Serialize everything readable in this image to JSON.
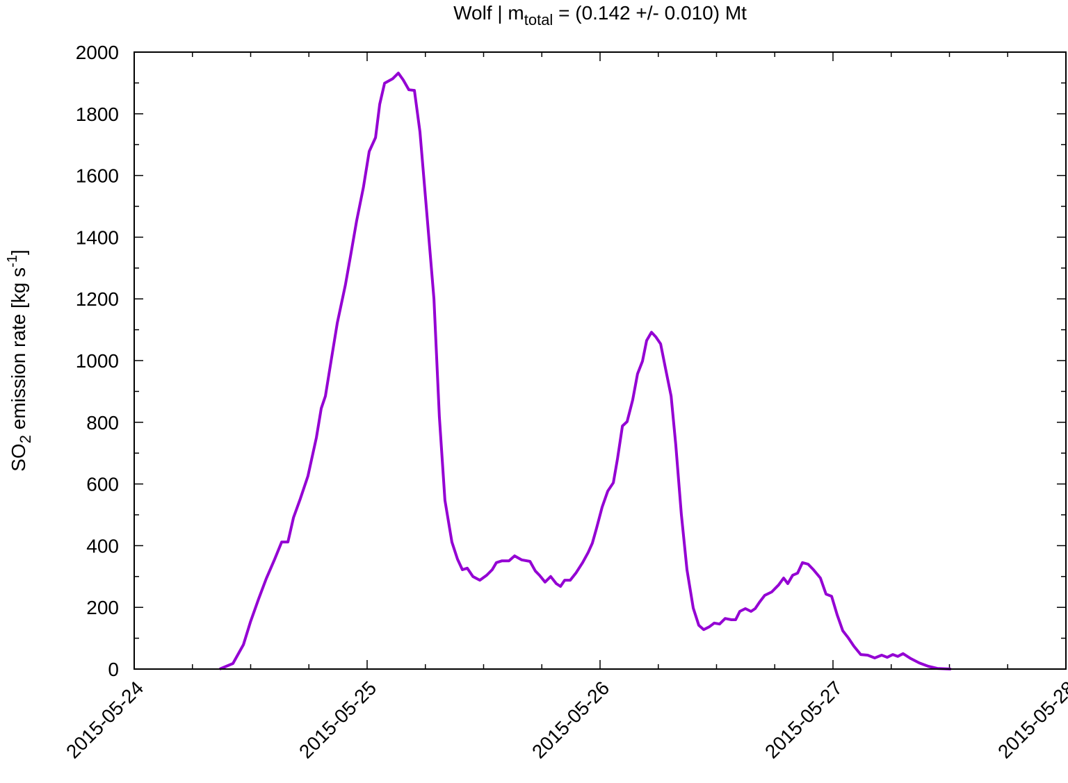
{
  "chart_data": {
    "type": "line",
    "title": {
      "prefix": "Wolf | m",
      "subscript": "total",
      "suffix": " = (0.142 +/- 0.010) Mt"
    },
    "y_label": {
      "prefix": "SO",
      "subscript": "2",
      "middle": " emission rate [kg s",
      "superscript": "-1",
      "suffix": "]"
    },
    "color": "#9400d3",
    "x": [
      0.367,
      0.424,
      0.469,
      0.499,
      0.534,
      0.567,
      0.603,
      0.633,
      0.66,
      0.684,
      0.713,
      0.746,
      0.782,
      0.803,
      0.821,
      0.845,
      0.872,
      0.907,
      0.928,
      0.955,
      0.984,
      1.009,
      1.036,
      1.054,
      1.075,
      1.11,
      1.134,
      1.155,
      1.179,
      1.203,
      1.227,
      1.257,
      1.287,
      1.31,
      1.334,
      1.364,
      1.388,
      1.409,
      1.43,
      1.454,
      1.484,
      1.513,
      1.537,
      1.555,
      1.579,
      1.609,
      1.633,
      1.663,
      1.699,
      1.722,
      1.74,
      1.764,
      1.788,
      1.812,
      1.83,
      1.848,
      1.872,
      1.896,
      1.925,
      1.949,
      1.967,
      1.985,
      2.009,
      2.033,
      2.057,
      2.075,
      2.096,
      2.116,
      2.14,
      2.161,
      2.182,
      2.2,
      2.221,
      2.239,
      2.26,
      2.281,
      2.305,
      2.325,
      2.349,
      2.373,
      2.4,
      2.424,
      2.445,
      2.469,
      2.49,
      2.513,
      2.537,
      2.564,
      2.582,
      2.6,
      2.624,
      2.648,
      2.666,
      2.684,
      2.707,
      2.737,
      2.767,
      2.788,
      2.806,
      2.827,
      2.848,
      2.869,
      2.893,
      2.916,
      2.946,
      2.97,
      2.994,
      3.018,
      3.042,
      3.066,
      3.09,
      3.119,
      3.149,
      3.179,
      3.209,
      3.233,
      3.257,
      3.278,
      3.301,
      3.334,
      3.37,
      3.409,
      3.448,
      3.507
    ],
    "values": [
      0,
      18,
      79,
      153,
      227,
      293,
      356,
      412,
      412,
      491,
      552,
      626,
      750,
      845,
      885,
      998,
      1122,
      1246,
      1336,
      1453,
      1561,
      1678,
      1723,
      1831,
      1899,
      1914,
      1932,
      1910,
      1878,
      1876,
      1741,
      1471,
      1200,
      818,
      547,
      412,
      356,
      322,
      327,
      300,
      288,
      304,
      322,
      345,
      351,
      351,
      367,
      354,
      349,
      318,
      304,
      282,
      300,
      277,
      268,
      288,
      288,
      311,
      345,
      378,
      408,
      457,
      525,
      577,
      604,
      682,
      788,
      802,
      872,
      957,
      998,
      1065,
      1092,
      1077,
      1054,
      975,
      885,
      727,
      502,
      322,
      198,
      142,
      128,
      137,
      149,
      146,
      164,
      160,
      160,
      187,
      196,
      187,
      196,
      216,
      239,
      250,
      273,
      295,
      277,
      304,
      311,
      345,
      340,
      322,
      295,
      243,
      236,
      176,
      124,
      101,
      74,
      47,
      45,
      36,
      45,
      38,
      47,
      41,
      50,
      34,
      20,
      9,
      2,
      0
    ],
    "xlim": [
      0,
      4
    ],
    "xticks": [
      {
        "value": 0,
        "label": "2015-05-24"
      },
      {
        "value": 1,
        "label": "2015-05-25"
      },
      {
        "value": 2,
        "label": "2015-05-26"
      },
      {
        "value": 3,
        "label": "2015-05-27"
      },
      {
        "value": 4,
        "label": "2015-05-28"
      }
    ],
    "ylim": [
      0,
      2000
    ],
    "yticks": [
      0,
      200,
      400,
      600,
      800,
      1000,
      1200,
      1400,
      1600,
      1800,
      2000
    ]
  }
}
